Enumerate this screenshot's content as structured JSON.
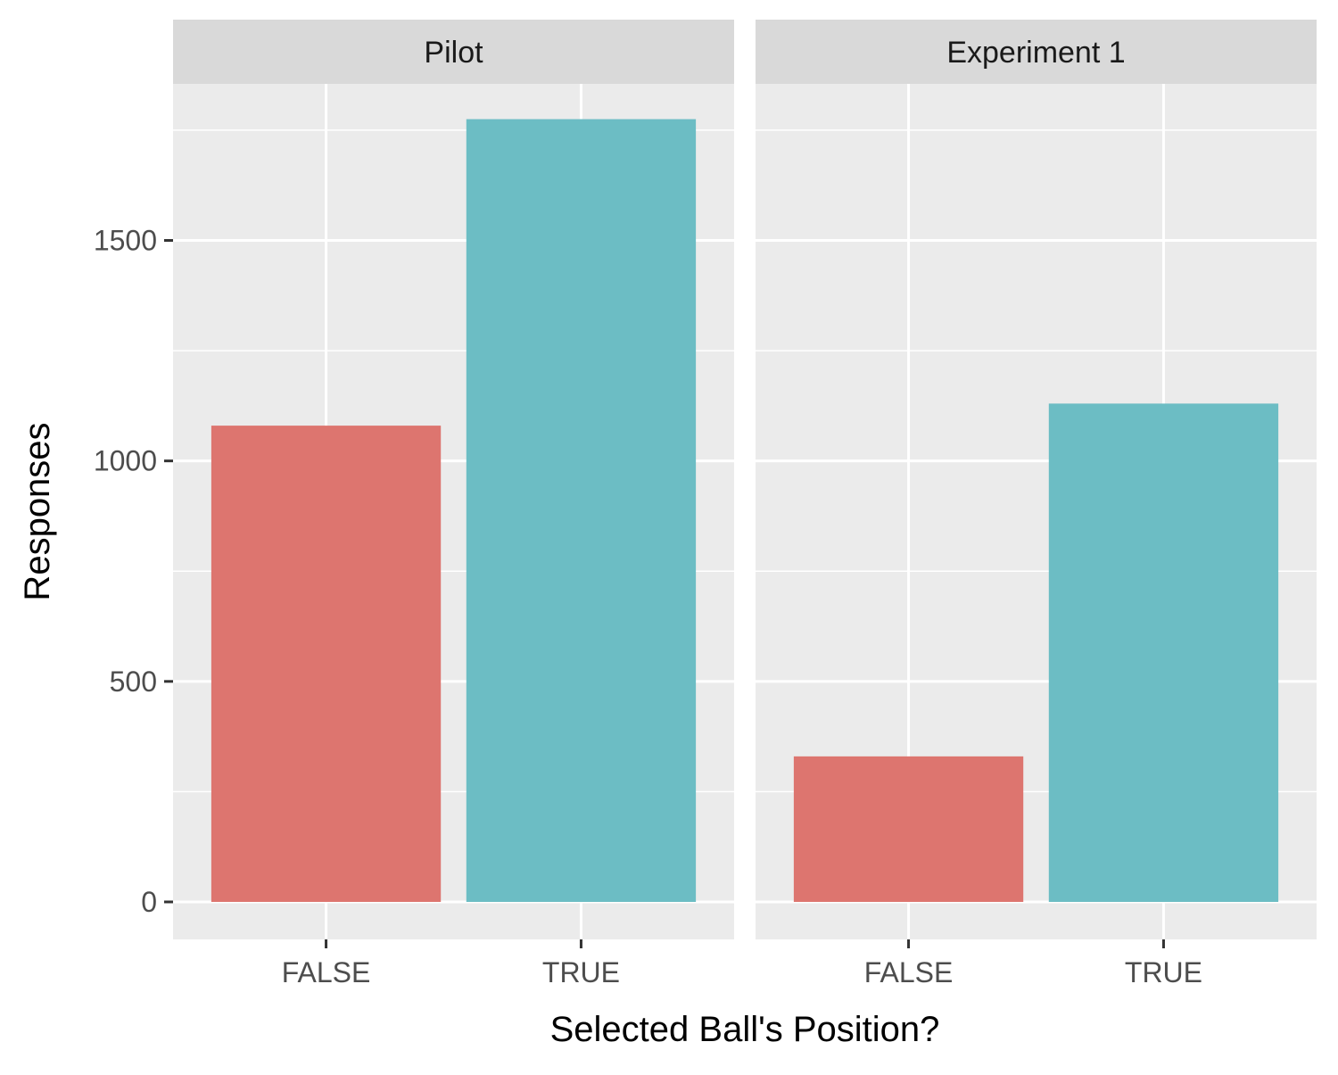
{
  "chart_data": {
    "type": "bar",
    "xlabel": "Selected Ball's Position?",
    "ylabel": "Responses",
    "ylim": [
      -85,
      1855
    ],
    "yticks": [
      0,
      500,
      1000,
      1500
    ],
    "yminor": [
      250,
      750,
      1250,
      1750
    ],
    "grid": true,
    "legend": "none",
    "categories": [
      "FALSE",
      "TRUE"
    ],
    "colors": {
      "FALSE": "#dd756f",
      "TRUE": "#6cbdc4"
    },
    "panel_background": "#ebebeb",
    "strip_background": "#d9d9d9",
    "facets": [
      {
        "label": "Pilot",
        "values": [
          1080,
          1775
        ]
      },
      {
        "label": "Experiment 1",
        "values": [
          330,
          1130
        ]
      }
    ]
  }
}
